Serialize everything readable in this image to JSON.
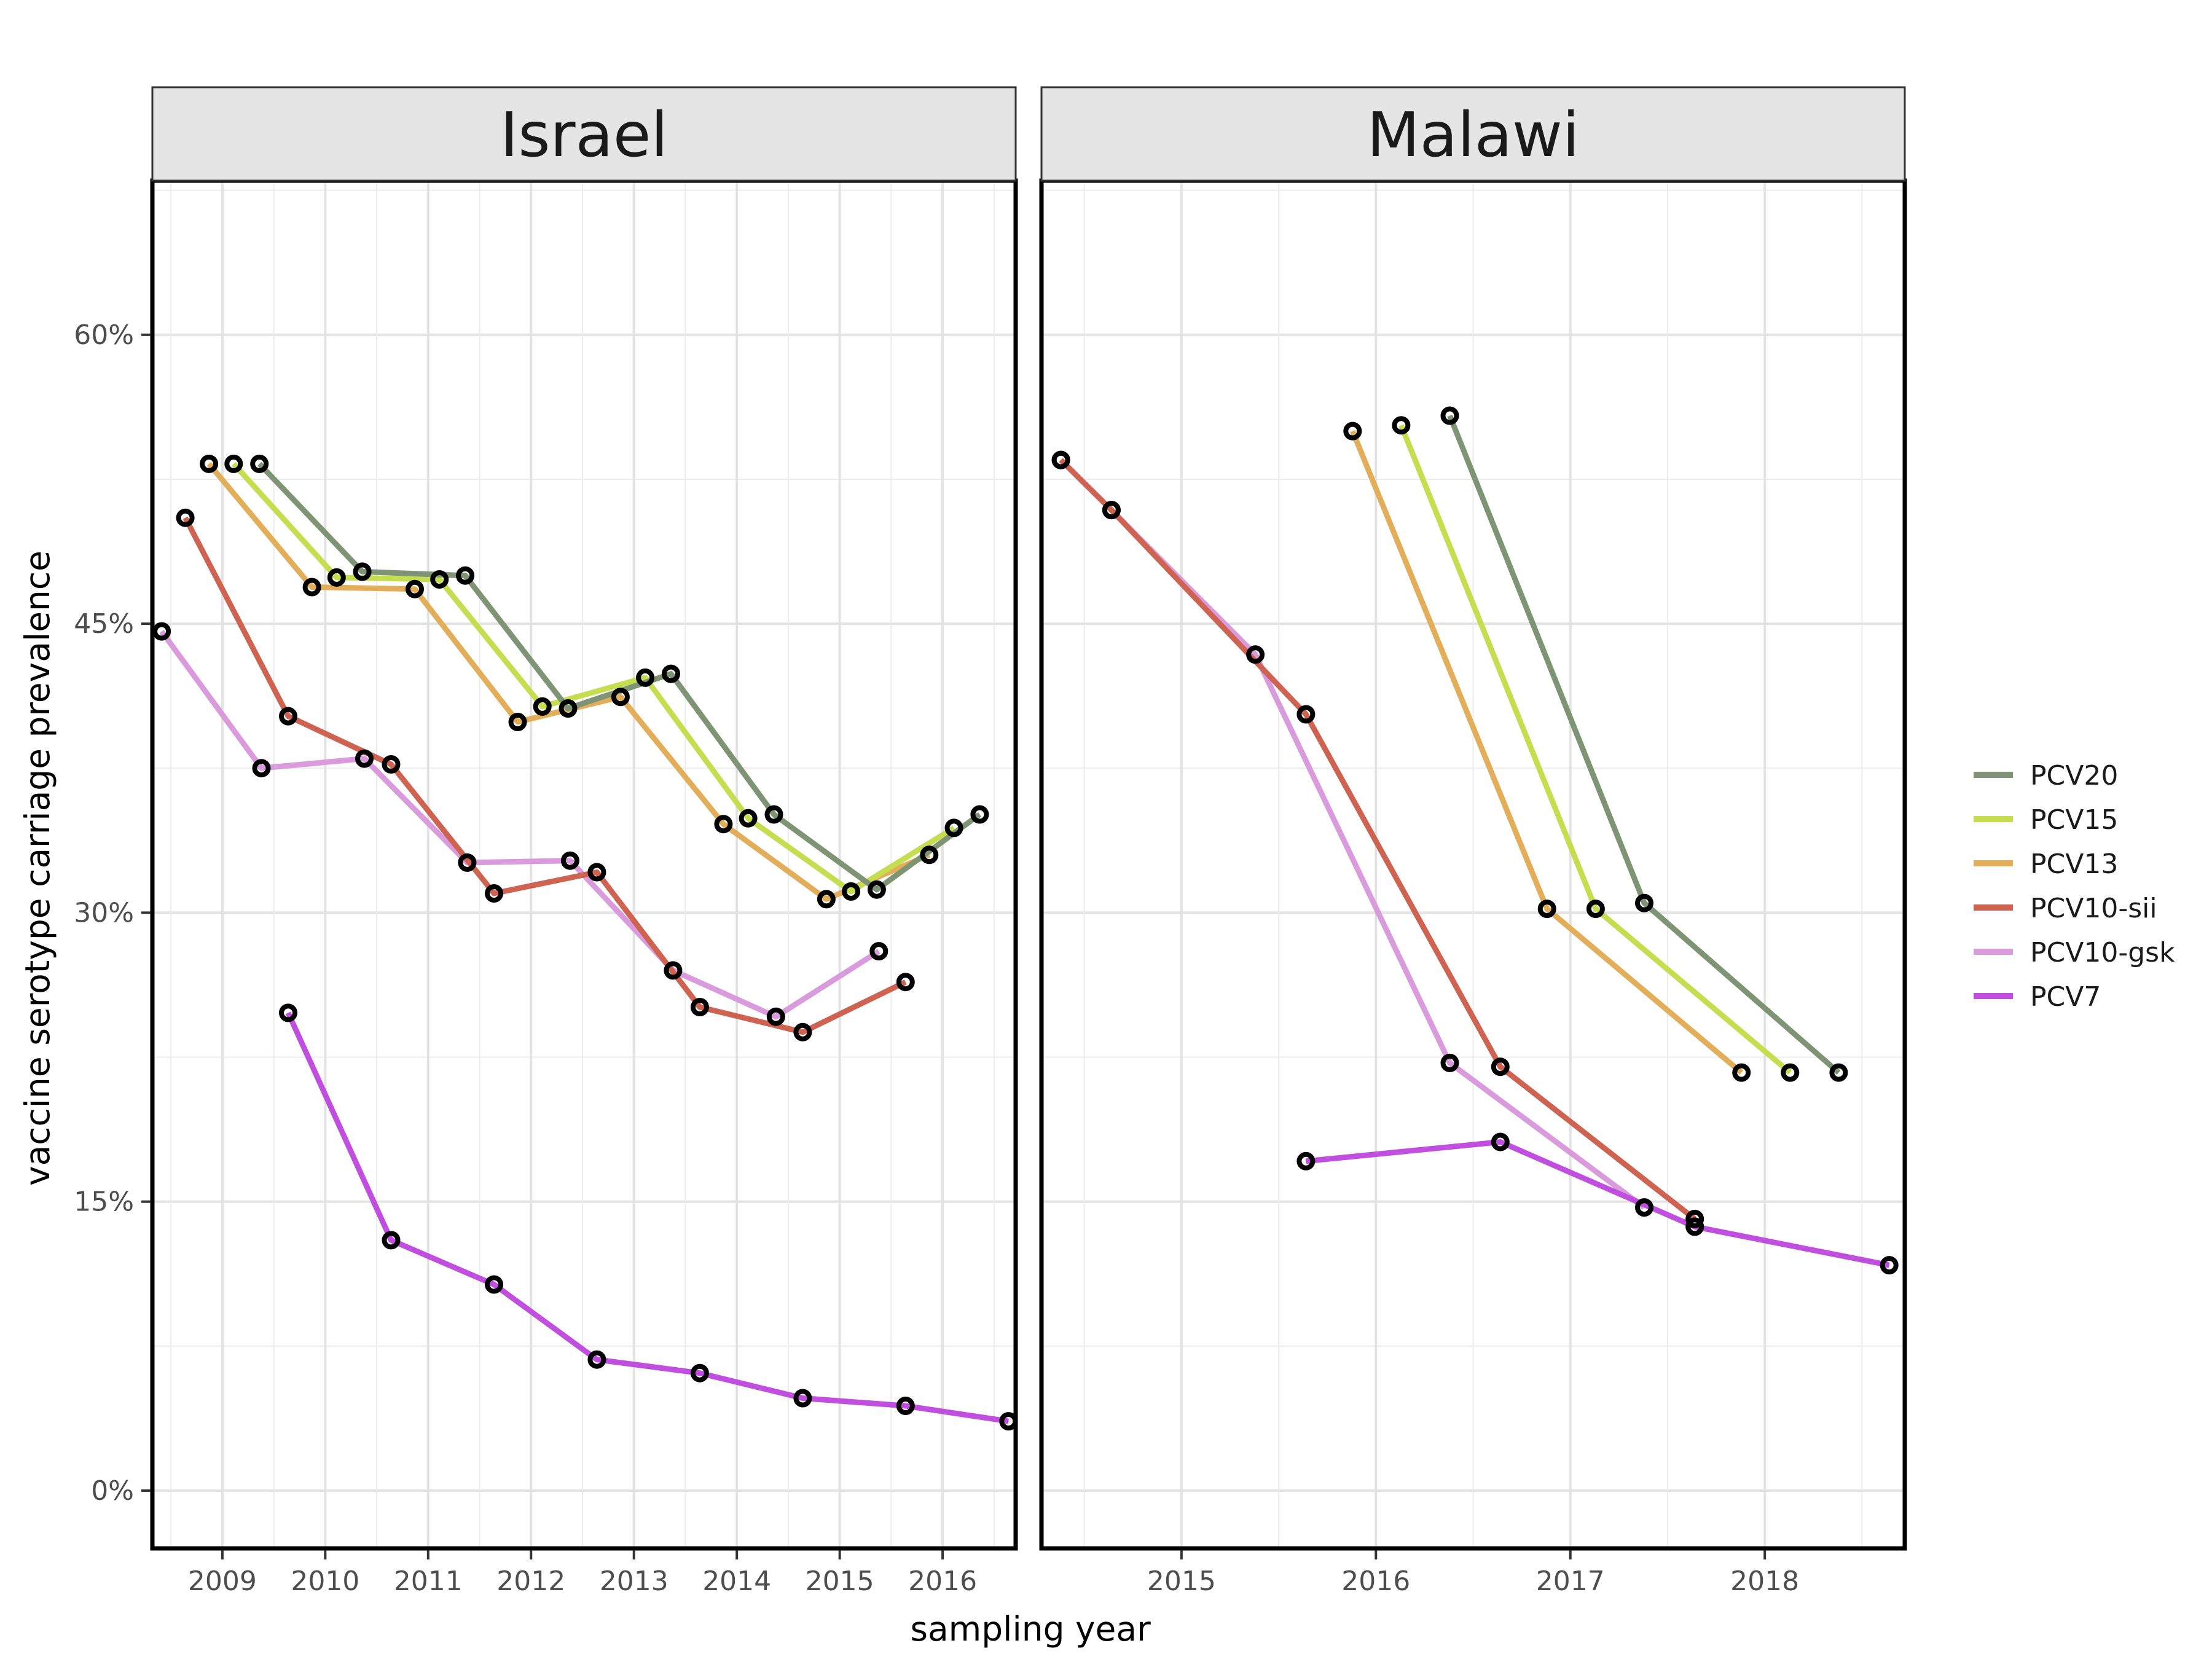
{
  "chart_data": {
    "type": "line",
    "xlabel": "sampling year",
    "ylabel": "vaccine serotype carriage prevalence",
    "y_ticks": [
      0,
      15,
      30,
      45,
      60
    ],
    "y_tick_labels": [
      "0%",
      "15%",
      "30%",
      "45%",
      "60%"
    ],
    "ylim": [
      -3,
      68
    ],
    "legend": {
      "position": "right",
      "order": [
        "PCV20",
        "PCV15",
        "PCV13",
        "PCV10-sii",
        "PCV10-gsk",
        "PCV7"
      ]
    },
    "series_colors": {
      "PCV20": "#7E9474",
      "PCV15": "#C4DE4F",
      "PCV13": "#E2AE59",
      "PCV10-sii": "#CF6352",
      "PCV10-gsk": "#D99BDB",
      "PCV7": "#C04FE0"
    },
    "panels": [
      {
        "title": "Israel",
        "xlim": [
          2008.32,
          2016.71
        ],
        "x_ticks": [
          2009,
          2010,
          2011,
          2012,
          2013,
          2014,
          2015,
          2016
        ],
        "series": [
          {
            "name": "PCV10-gsk",
            "x": [
              2008.41,
              2009.38,
              2010.38,
              2011.38,
              2012.38,
              2013.38,
              2014.38,
              2015.38
            ],
            "y": [
              44.6,
              37.5,
              38.0,
              32.6,
              32.7,
              27.0,
              24.6,
              28.0
            ]
          },
          {
            "name": "PCV10-sii",
            "x": [
              2008.64,
              2009.64,
              2010.64,
              2011.64,
              2012.64,
              2013.64,
              2014.64,
              2015.64
            ],
            "y": [
              50.5,
              40.2,
              37.7,
              31.0,
              32.1,
              25.1,
              23.8,
              26.4
            ]
          },
          {
            "name": "PCV13",
            "x": [
              2008.87,
              2009.87,
              2010.87,
              2011.87,
              2012.87,
              2013.87,
              2014.87,
              2015.87
            ],
            "y": [
              53.3,
              46.9,
              46.8,
              39.9,
              41.2,
              34.6,
              30.7,
              33.0
            ]
          },
          {
            "name": "PCV15",
            "x": [
              2009.11,
              2010.11,
              2011.11,
              2012.11,
              2013.11,
              2014.11,
              2015.11,
              2016.11
            ],
            "y": [
              53.3,
              47.4,
              47.3,
              40.7,
              42.2,
              34.9,
              31.1,
              34.4
            ]
          },
          {
            "name": "PCV20",
            "x": [
              2009.36,
              2010.36,
              2011.36,
              2012.36,
              2013.36,
              2014.36,
              2015.36,
              2016.36
            ],
            "y": [
              53.3,
              47.7,
              47.5,
              40.6,
              42.4,
              35.1,
              31.2,
              35.1
            ]
          },
          {
            "name": "PCV7",
            "x": [
              2009.64,
              2010.64,
              2011.64,
              2012.64,
              2013.64,
              2014.64,
              2015.64,
              2016.64
            ],
            "y": [
              24.8,
              13.0,
              10.7,
              6.8,
              6.1,
              4.8,
              4.4,
              3.6
            ]
          }
        ]
      },
      {
        "title": "Malawi",
        "xlim": [
          2014.28,
          2018.72
        ],
        "x_ticks": [
          2015,
          2016,
          2017,
          2018
        ],
        "series": [
          {
            "name": "PCV10-gsk",
            "x": [
              2014.38,
              2014.64,
              2015.38,
              2016.38,
              2017.38
            ],
            "y": [
              53.5,
              50.9,
              43.4,
              22.2,
              14.7
            ]
          },
          {
            "name": "PCV10-sii",
            "x": [
              2014.38,
              2014.64,
              2015.64,
              2016.64,
              2017.64
            ],
            "y": [
              53.5,
              50.9,
              40.3,
              22.0,
              14.1
            ]
          },
          {
            "name": "PCV13",
            "x": [
              2015.88,
              2016.88,
              2017.88
            ],
            "y": [
              55.0,
              30.2,
              21.7
            ]
          },
          {
            "name": "PCV15",
            "x": [
              2016.13,
              2017.13,
              2018.13
            ],
            "y": [
              55.3,
              30.2,
              21.7
            ]
          },
          {
            "name": "PCV20",
            "x": [
              2016.38,
              2017.38,
              2018.38
            ],
            "y": [
              55.8,
              30.5,
              21.7
            ]
          },
          {
            "name": "PCV7",
            "x": [
              2015.64,
              2016.64,
              2017.64,
              2018.64
            ],
            "y": [
              17.1,
              18.1,
              13.7,
              11.7
            ]
          }
        ]
      }
    ]
  }
}
